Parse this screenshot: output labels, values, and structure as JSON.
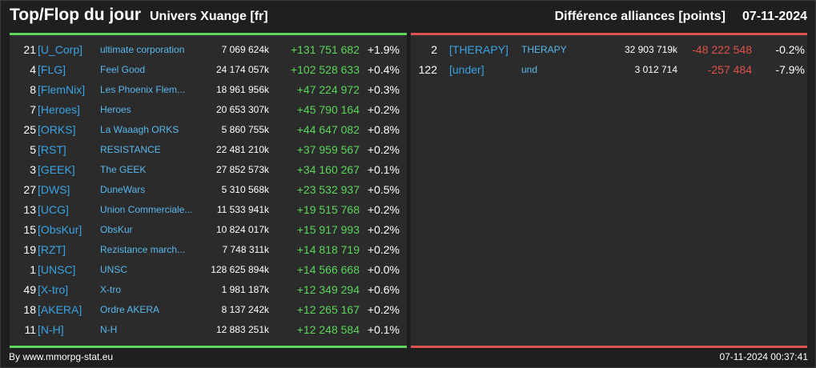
{
  "header": {
    "title": "Top/Flop du jour",
    "subtitle": "Univers Xuange [fr]",
    "right_label": "Différence alliances [points]",
    "date": "07-11-2024"
  },
  "colors": {
    "top_accent": "#5bd65b",
    "flop_accent": "#d9534f",
    "tag": "#3aa3e3"
  },
  "top": [
    {
      "rank": "21",
      "tag": "[U_Corp]",
      "name": "ultimate corporation",
      "points": "7 069 624k",
      "diff": "+131 751 682",
      "pct": "+1.9%"
    },
    {
      "rank": "4",
      "tag": "[FLG]",
      "name": "Feel Good",
      "points": "24 174 057k",
      "diff": "+102 528 633",
      "pct": "+0.4%"
    },
    {
      "rank": "8",
      "tag": "[FlemNix]",
      "name": "Les Phoenix Flem...",
      "points": "18 961 956k",
      "diff": "+47 224 972",
      "pct": "+0.3%"
    },
    {
      "rank": "7",
      "tag": "[Heroes]",
      "name": "Heroes",
      "points": "20 653 307k",
      "diff": "+45 790 164",
      "pct": "+0.2%"
    },
    {
      "rank": "25",
      "tag": "[ORKS]",
      "name": "La Waaagh ORKS",
      "points": "5 860 755k",
      "diff": "+44 647 082",
      "pct": "+0.8%"
    },
    {
      "rank": "5",
      "tag": "[RST]",
      "name": "RESISTANCE",
      "points": "22 481 210k",
      "diff": "+37 959 567",
      "pct": "+0.2%"
    },
    {
      "rank": "3",
      "tag": "[GEEK]",
      "name": "The GEEK",
      "points": "27 852 573k",
      "diff": "+34 160 267",
      "pct": "+0.1%"
    },
    {
      "rank": "27",
      "tag": "[DWS]",
      "name": "DuneWars",
      "points": "5 310 568k",
      "diff": "+23 532 937",
      "pct": "+0.5%"
    },
    {
      "rank": "13",
      "tag": "[UCG]",
      "name": "Union Commerciale...",
      "points": "11 533 941k",
      "diff": "+19 515 768",
      "pct": "+0.2%"
    },
    {
      "rank": "15",
      "tag": "[ObsKur]",
      "name": "ObsKur",
      "points": "10 824 017k",
      "diff": "+15 917 993",
      "pct": "+0.2%"
    },
    {
      "rank": "19",
      "tag": "[RZT]",
      "name": "Rezistance march...",
      "points": "7 748 311k",
      "diff": "+14 818 719",
      "pct": "+0.2%"
    },
    {
      "rank": "1",
      "tag": "[UNSC]",
      "name": "UNSC",
      "points": "128 625 894k",
      "diff": "+14 566 668",
      "pct": "+0.0%"
    },
    {
      "rank": "49",
      "tag": "[X-tro]",
      "name": "X-tro",
      "points": "1 981 187k",
      "diff": "+12 349 294",
      "pct": "+0.6%"
    },
    {
      "rank": "18",
      "tag": "[AKERA]",
      "name": "Ordre AKERA",
      "points": "8 137 242k",
      "diff": "+12 265 167",
      "pct": "+0.2%"
    },
    {
      "rank": "11",
      "tag": "[N-H]",
      "name": "N-H",
      "points": "12 883 251k",
      "diff": "+12 248 584",
      "pct": "+0.1%"
    }
  ],
  "flop": [
    {
      "rank": "2",
      "tag": "[THERAPY]",
      "name": "THERAPY",
      "points": "32 903 719k",
      "diff": "-48 222 548",
      "pct": "-0.2%"
    },
    {
      "rank": "122",
      "tag": "[under]",
      "name": "und",
      "points": "3 012 714",
      "diff": "-257 484",
      "pct": "-7.9%"
    }
  ],
  "footer": {
    "credit": "By www.mmorpg-stat.eu",
    "timestamp": "07-11-2024 00:37:41"
  }
}
